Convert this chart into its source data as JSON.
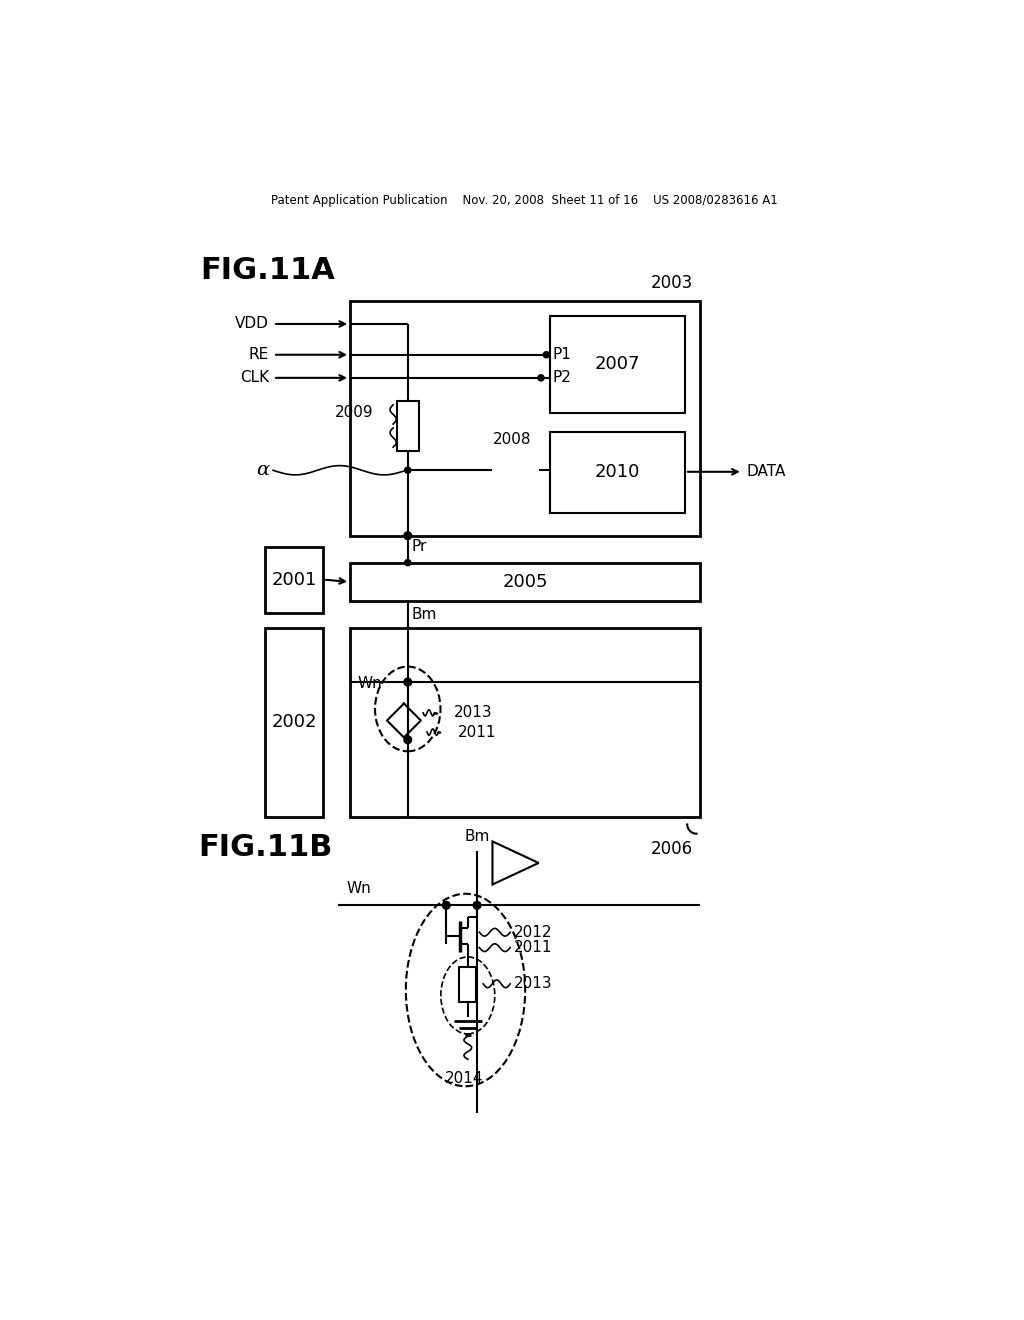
{
  "bg_color": "#ffffff",
  "header": "Patent Application Publication    Nov. 20, 2008  Sheet 11 of 16    US 2008/0283616 A1",
  "fig11a_label": "FIG.11A",
  "fig11b_label": "FIG.11B",
  "alpha": "α",
  "labels": {
    "VDD": "VDD",
    "RE": "RE",
    "CLK": "CLK",
    "P1": "P1",
    "P2": "P2",
    "Pr": "Pr",
    "Bm": "Bm",
    "Wn": "Wn",
    "DATA": "DATA",
    "2001": "2001",
    "2002": "2002",
    "2003": "2003",
    "2005": "2005",
    "2006": "2006",
    "2007": "2007",
    "2008": "2008",
    "2009": "2009",
    "2010": "2010",
    "2011": "2011",
    "2012": "2012",
    "2013": "2013",
    "2014": "2014"
  }
}
